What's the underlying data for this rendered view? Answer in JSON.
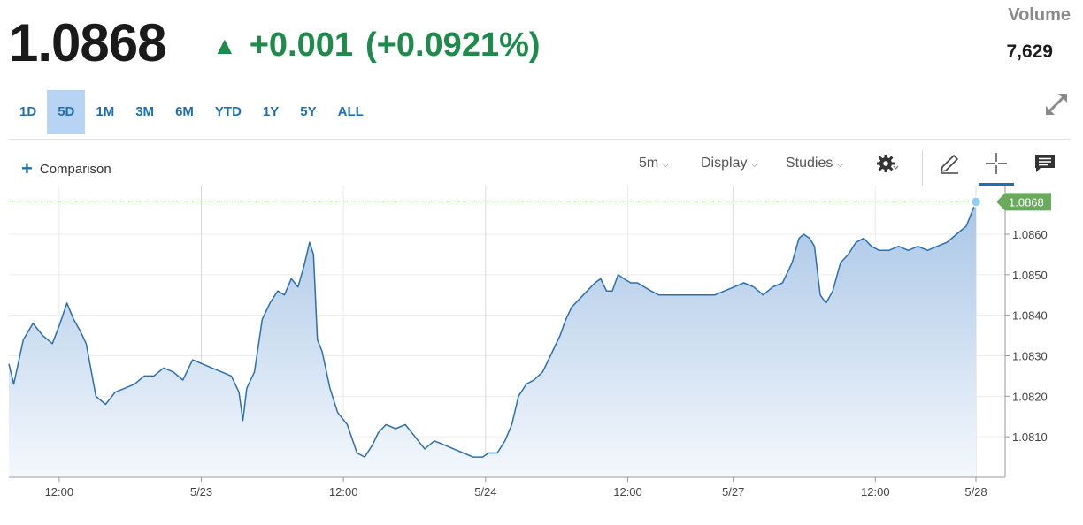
{
  "header": {
    "last_price": "1.0868",
    "change": "+0.001",
    "change_pct": "(+0.0921%)",
    "volume_label": "Volume",
    "volume_value": "7,629"
  },
  "ranges": [
    "1D",
    "5D",
    "1M",
    "3M",
    "6M",
    "YTD",
    "1Y",
    "5Y",
    "ALL"
  ],
  "active_range": "5D",
  "toolbar": {
    "comparison": "Comparison",
    "interval": "5m",
    "display": "Display",
    "studies": "Studies"
  },
  "icons": [
    "arrow-up-icon",
    "expand-icon",
    "plus-icon",
    "chevron-down-icon",
    "gear-icon",
    "pencil-icon",
    "crosshair-icon",
    "comment-icon"
  ],
  "colors": {
    "up": "#1e8a4c",
    "line": "#2a6fb0",
    "accent": "#1f6fb5",
    "price_tag": "#6aaa5c"
  },
  "chart_data": {
    "type": "area",
    "current_value_label": "1.0868",
    "y_ticks": [
      "1.0860",
      "1.0850",
      "1.0840",
      "1.0830",
      "1.0820",
      "1.0810"
    ],
    "x_ticks": [
      "12:00",
      "5/23",
      "12:00",
      "5/24",
      "12:00",
      "5/27",
      "12:00",
      "5/28"
    ],
    "ylim": [
      1.08,
      1.0872
    ],
    "x_range": [
      0,
      100
    ],
    "x_tick_positions": [
      5.2,
      19.9,
      34.6,
      49.3,
      64.0,
      74.9,
      89.6,
      100
    ],
    "series": [
      {
        "x": [
          0,
          0.5,
          1.5,
          2.5,
          3.5,
          4.5,
          5.3,
          6,
          6.7,
          7.4,
          8,
          9,
          10,
          11,
          12,
          13,
          14,
          15,
          16,
          17,
          18,
          19,
          20,
          21,
          22,
          23,
          23.8,
          24.2,
          24.6,
          25.4,
          26.2,
          27,
          27.8,
          28.5,
          29.2,
          29.9,
          30.5,
          31.1,
          31.5,
          31.9,
          32.4,
          33.2,
          34,
          35,
          36,
          36.8,
          37.6,
          38.2,
          39,
          40,
          41,
          42,
          43,
          44,
          45,
          46,
          47,
          48,
          49,
          49.6,
          50.5,
          51.3,
          52,
          52.7,
          53.5,
          54.3,
          55.2,
          56,
          57,
          57.6,
          58.2,
          59,
          59.8,
          60.6,
          61.2,
          61.8,
          62.4,
          63,
          63.6,
          64.3,
          65,
          65.7,
          66.4,
          67.2,
          68,
          68.8,
          70,
          71,
          72,
          73,
          74,
          75,
          76,
          77,
          78,
          79,
          80,
          81,
          81.7,
          82.2,
          82.8,
          83.3,
          83.9,
          84.5,
          85.2,
          86,
          86.8,
          87.6,
          88.4,
          89.2,
          90,
          91,
          92,
          93,
          94,
          95,
          96,
          97,
          98,
          99,
          100
        ],
        "y": [
          1.0828,
          1.0823,
          1.0834,
          1.0838,
          1.0835,
          1.0833,
          1.0838,
          1.0843,
          1.0839,
          1.0836,
          1.0833,
          1.082,
          1.0818,
          1.0821,
          1.0822,
          1.0823,
          1.0825,
          1.0825,
          1.0827,
          1.0826,
          1.0824,
          1.0829,
          1.0828,
          1.0827,
          1.0826,
          1.0825,
          1.0821,
          1.0814,
          1.0822,
          1.0826,
          1.0839,
          1.0843,
          1.0846,
          1.0845,
          1.0849,
          1.0847,
          1.0852,
          1.0858,
          1.0855,
          1.0834,
          1.0831,
          1.0822,
          1.0816,
          1.0813,
          1.0806,
          1.0805,
          1.0808,
          1.0811,
          1.0813,
          1.0812,
          1.0813,
          1.081,
          1.0807,
          1.0809,
          1.0808,
          1.0807,
          1.0806,
          1.0805,
          1.0805,
          1.0806,
          1.0806,
          1.0809,
          1.0813,
          1.082,
          1.0823,
          1.0824,
          1.0826,
          1.083,
          1.0835,
          1.0839,
          1.0842,
          1.0844,
          1.0846,
          1.0848,
          1.0849,
          1.0846,
          1.0846,
          1.085,
          1.0849,
          1.0848,
          1.0848,
          1.0847,
          1.0846,
          1.0845,
          1.0845,
          1.0845,
          1.0845,
          1.0845,
          1.0845,
          1.0845,
          1.0846,
          1.0847,
          1.0848,
          1.0847,
          1.0845,
          1.0847,
          1.0848,
          1.0853,
          1.0859,
          1.086,
          1.0859,
          1.0857,
          1.0845,
          1.0843,
          1.0846,
          1.0853,
          1.0855,
          1.0858,
          1.0859,
          1.0857,
          1.0856,
          1.0856,
          1.0857,
          1.0856,
          1.0857,
          1.0856,
          1.0857,
          1.0858,
          1.086,
          1.0862,
          1.0868
        ]
      }
    ]
  }
}
